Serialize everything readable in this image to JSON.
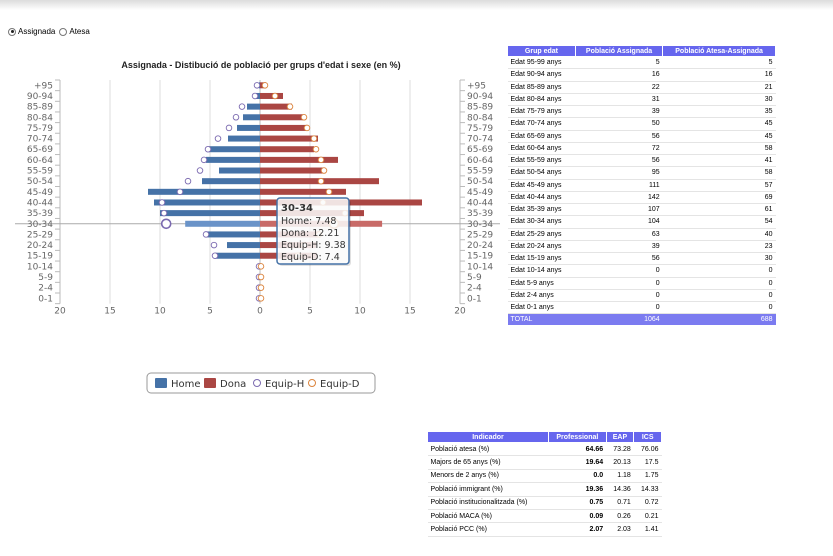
{
  "radios": [
    {
      "label": "Assignada",
      "checked": true
    },
    {
      "label": "Atesa",
      "checked": false
    }
  ],
  "chart_data": {
    "type": "bar",
    "title": "Assignada - Distibució de població per grups d'edat i sexe (en %)",
    "categories": [
      "+95",
      "90-94",
      "85-89",
      "80-84",
      "75-79",
      "70-74",
      "65-69",
      "60-64",
      "55-59",
      "50-54",
      "45-49",
      "40-44",
      "35-39",
      "30-34",
      "25-29",
      "20-24",
      "15-19",
      "10-14",
      "5-9",
      "2-4",
      "0-1"
    ],
    "series": [
      {
        "name": "Home",
        "color": "#4572a7",
        "values": [
          0.1,
          0.4,
          1.3,
          1.7,
          2.3,
          3.2,
          5.1,
          5.4,
          4.1,
          5.8,
          11.2,
          10.6,
          10.0,
          7.48,
          5.3,
          3.3,
          4.5,
          0,
          0,
          0,
          0
        ]
      },
      {
        "name": "Dona",
        "color": "#aa4643",
        "values": [
          0.6,
          2.3,
          3.2,
          4.3,
          4.7,
          5.8,
          5.4,
          7.8,
          6.4,
          11.9,
          8.6,
          16.2,
          10.4,
          12.21,
          5.9,
          5.6,
          5.7,
          0,
          0,
          0,
          0
        ]
      },
      {
        "name": "Equip-H",
        "color": "#7b6ab0",
        "values": [
          0.3,
          0.5,
          1.8,
          2.4,
          3.1,
          4.2,
          5.2,
          5.6,
          6.0,
          7.2,
          8.0,
          9.8,
          9.6,
          9.38,
          5.4,
          4.6,
          4.5,
          0.1,
          0.1,
          0.1,
          0.1
        ]
      },
      {
        "name": "Equip-D",
        "color": "#db843d",
        "values": [
          0.5,
          1.5,
          3.0,
          4.4,
          4.7,
          5.4,
          5.6,
          6.1,
          6.4,
          6.1,
          6.9,
          6.3,
          8.5,
          7.4,
          5.9,
          4.4,
          3.8,
          0.1,
          0.1,
          0.1,
          0.1
        ]
      }
    ],
    "xtick_labels": [
      "20",
      "15",
      "10",
      "5",
      "0",
      "5",
      "10",
      "15",
      "20"
    ],
    "xlim": [
      -20,
      20
    ],
    "grid": true,
    "legend": "bottom-center",
    "tooltip": {
      "title": "30-34",
      "lines": [
        "Home: 7.48",
        "Dona: 12.21",
        "Equip-H: 9.38",
        "Equip-D: 7.4"
      ]
    }
  },
  "age_table": {
    "headers": [
      "Grup edat",
      "Població Assignada",
      "Població Atesa-Assignada"
    ],
    "rows": [
      [
        "Edat 95-99 anys",
        "5",
        "5"
      ],
      [
        "Edat 90-94 anys",
        "16",
        "16"
      ],
      [
        "Edat 85-89 anys",
        "22",
        "21"
      ],
      [
        "Edat 80-84 anys",
        "31",
        "30"
      ],
      [
        "Edat 75-79 anys",
        "39",
        "35"
      ],
      [
        "Edat 70-74 anys",
        "50",
        "45"
      ],
      [
        "Edat 65-69 anys",
        "56",
        "45"
      ],
      [
        "Edat 60-64 anys",
        "72",
        "58"
      ],
      [
        "Edat 55-59 anys",
        "56",
        "41"
      ],
      [
        "Edat 50-54 anys",
        "95",
        "58"
      ],
      [
        "Edat 45-49 anys",
        "111",
        "57"
      ],
      [
        "Edat 40-44 anys",
        "142",
        "69"
      ],
      [
        "Edat 35-39 anys",
        "107",
        "61"
      ],
      [
        "Edat 30-34 anys",
        "104",
        "54"
      ],
      [
        "Edat 25-29 anys",
        "63",
        "40"
      ],
      [
        "Edat 20-24 anys",
        "39",
        "23"
      ],
      [
        "Edat 15-19 anys",
        "56",
        "30"
      ],
      [
        "Edat 10-14 anys",
        "0",
        "0"
      ],
      [
        "Edat 5-9 anys",
        "0",
        "0"
      ],
      [
        "Edat 2-4 anys",
        "0",
        "0"
      ],
      [
        "Edat 0-1 anys",
        "0",
        "0"
      ]
    ],
    "total": [
      "TOTAL",
      "1064",
      "688"
    ]
  },
  "indicator_table": {
    "headers": [
      "Indicador",
      "Professional",
      "EAP",
      "ICS"
    ],
    "rows": [
      [
        "Població atesa (%)",
        "64.66",
        "73.28",
        "76.06"
      ],
      [
        "Majors de 65 anys (%)",
        "19.64",
        "20.13",
        "17.5"
      ],
      [
        "Menors de 2 anys (%)",
        "0.0",
        "1.18",
        "1.75"
      ],
      [
        "Població immigrant (%)",
        "19.36",
        "14.36",
        "14.33"
      ],
      [
        "Població institucionalitzada (%)",
        "0.75",
        "0.71",
        "0.72"
      ],
      [
        "Població MACA (%)",
        "0.09",
        "0.26",
        "0.21"
      ],
      [
        "Població PCC (%)",
        "2.07",
        "2.03",
        "1.41"
      ]
    ]
  }
}
